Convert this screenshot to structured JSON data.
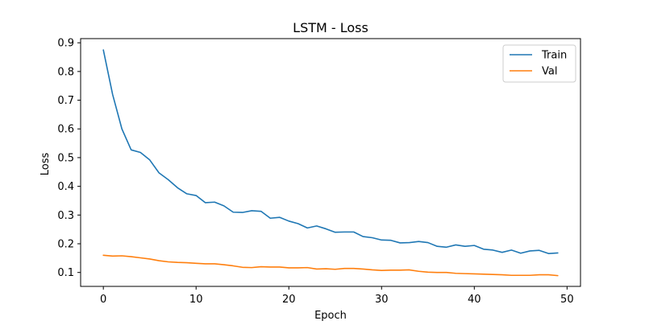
{
  "chart_data": {
    "type": "line",
    "title": "LSTM - Loss",
    "xlabel": "Epoch",
    "ylabel": "Loss",
    "xlim": [
      -2.45,
      51.45
    ],
    "ylim": [
      0.0515,
      0.9145
    ],
    "xticks": [
      0,
      10,
      20,
      30,
      40,
      50
    ],
    "yticks": [
      0.1,
      0.2,
      0.3,
      0.4,
      0.5,
      0.6,
      0.7,
      0.8,
      0.9
    ],
    "grid": false,
    "legend_position": "top-right",
    "x": [
      0,
      1,
      2,
      3,
      4,
      5,
      6,
      7,
      8,
      9,
      10,
      11,
      12,
      13,
      14,
      15,
      16,
      17,
      18,
      19,
      20,
      21,
      22,
      23,
      24,
      25,
      26,
      27,
      28,
      29,
      30,
      31,
      32,
      33,
      34,
      35,
      36,
      37,
      38,
      39,
      40,
      41,
      42,
      43,
      44,
      45,
      46,
      47,
      48,
      49
    ],
    "series": [
      {
        "name": "Train",
        "color": "#1f77b4",
        "values": [
          0.875,
          0.72,
          0.6,
          0.527,
          0.518,
          0.492,
          0.447,
          0.423,
          0.395,
          0.374,
          0.368,
          0.343,
          0.345,
          0.332,
          0.31,
          0.309,
          0.315,
          0.313,
          0.289,
          0.292,
          0.279,
          0.27,
          0.255,
          0.262,
          0.252,
          0.24,
          0.241,
          0.241,
          0.225,
          0.221,
          0.213,
          0.212,
          0.203,
          0.204,
          0.208,
          0.204,
          0.191,
          0.188,
          0.196,
          0.191,
          0.194,
          0.181,
          0.178,
          0.17,
          0.178,
          0.167,
          0.175,
          0.177,
          0.166,
          0.168
        ]
      },
      {
        "name": "Val",
        "color": "#ff7f0e",
        "values": [
          0.16,
          0.157,
          0.158,
          0.155,
          0.151,
          0.147,
          0.141,
          0.137,
          0.135,
          0.134,
          0.132,
          0.13,
          0.13,
          0.127,
          0.123,
          0.118,
          0.117,
          0.12,
          0.119,
          0.119,
          0.116,
          0.116,
          0.117,
          0.112,
          0.113,
          0.111,
          0.114,
          0.114,
          0.112,
          0.109,
          0.107,
          0.108,
          0.108,
          0.109,
          0.104,
          0.101,
          0.1,
          0.1,
          0.097,
          0.096,
          0.095,
          0.094,
          0.093,
          0.092,
          0.09,
          0.09,
          0.09,
          0.092,
          0.092,
          0.089
        ]
      }
    ]
  }
}
